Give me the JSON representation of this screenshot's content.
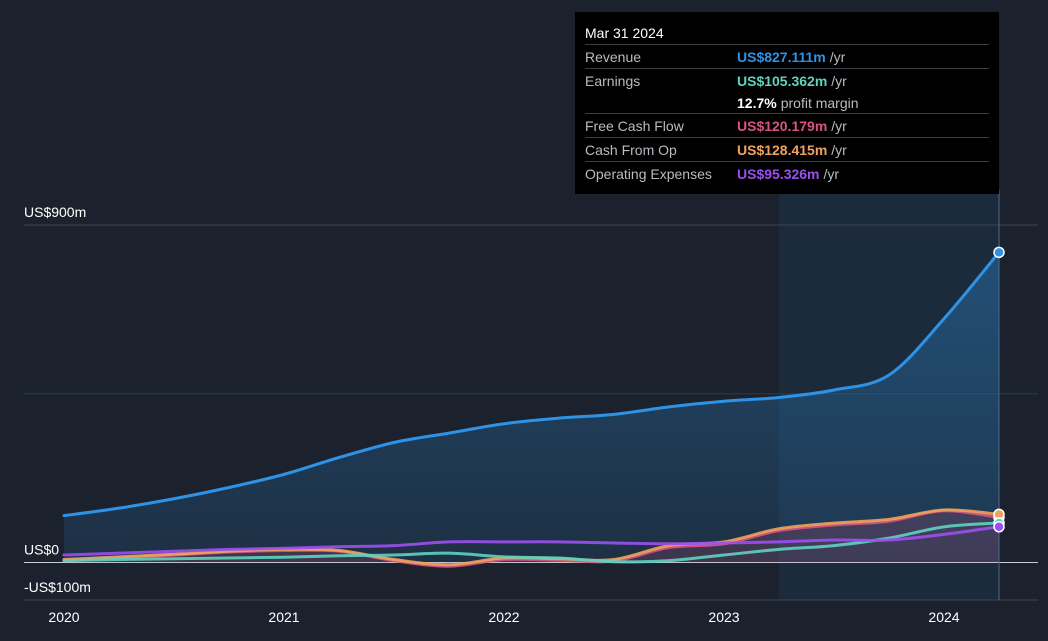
{
  "chart_data": {
    "type": "area",
    "y_tick_labels": [
      "US$900m",
      "US$0",
      "-US$100m"
    ],
    "ylim": [
      -100,
      900
    ],
    "x_ticks": [
      {
        "label": "2020",
        "x": 2020.0
      },
      {
        "label": "2021",
        "x": 2021.0
      },
      {
        "label": "2022",
        "x": 2022.0
      },
      {
        "label": "2023",
        "x": 2023.0
      },
      {
        "label": "2024",
        "x": 2024.0
      }
    ],
    "highlight_start": 2023.25,
    "series": [
      {
        "key": "revenue",
        "color": "#2e93e6",
        "fill": true,
        "points": [
          [
            2020.0,
            125
          ],
          [
            2020.25,
            145
          ],
          [
            2020.5,
            170
          ],
          [
            2020.75,
            200
          ],
          [
            2021.0,
            235
          ],
          [
            2021.25,
            280
          ],
          [
            2021.5,
            320
          ],
          [
            2021.75,
            345
          ],
          [
            2022.0,
            370
          ],
          [
            2022.25,
            385
          ],
          [
            2022.5,
            395
          ],
          [
            2022.75,
            415
          ],
          [
            2023.0,
            430
          ],
          [
            2023.25,
            440
          ],
          [
            2023.5,
            460
          ],
          [
            2023.75,
            500
          ],
          [
            2024.0,
            650
          ],
          [
            2024.25,
            827.111
          ]
        ]
      },
      {
        "key": "free_cash_flow",
        "color": "#d9547f",
        "fill": true,
        "points": [
          [
            2020.0,
            5
          ],
          [
            2020.25,
            12
          ],
          [
            2020.5,
            20
          ],
          [
            2020.75,
            28
          ],
          [
            2021.0,
            32
          ],
          [
            2021.25,
            30
          ],
          [
            2021.5,
            5
          ],
          [
            2021.75,
            -10
          ],
          [
            2022.0,
            8
          ],
          [
            2022.25,
            6
          ],
          [
            2022.5,
            4
          ],
          [
            2022.75,
            40
          ],
          [
            2023.0,
            50
          ],
          [
            2023.25,
            85
          ],
          [
            2023.5,
            100
          ],
          [
            2023.75,
            110
          ],
          [
            2024.0,
            138
          ],
          [
            2024.25,
            120.179
          ]
        ]
      },
      {
        "key": "cash_from_op",
        "color": "#f0a35e",
        "fill": false,
        "points": [
          [
            2020.0,
            8
          ],
          [
            2020.25,
            15
          ],
          [
            2020.5,
            22
          ],
          [
            2020.75,
            30
          ],
          [
            2021.0,
            35
          ],
          [
            2021.25,
            32
          ],
          [
            2021.5,
            8
          ],
          [
            2021.75,
            -6
          ],
          [
            2022.0,
            12
          ],
          [
            2022.25,
            10
          ],
          [
            2022.5,
            8
          ],
          [
            2022.75,
            45
          ],
          [
            2023.0,
            55
          ],
          [
            2023.25,
            90
          ],
          [
            2023.5,
            105
          ],
          [
            2023.75,
            115
          ],
          [
            2024.0,
            140
          ],
          [
            2024.25,
            128.415
          ]
        ]
      },
      {
        "key": "earnings",
        "color": "#5fd2c0",
        "fill": false,
        "points": [
          [
            2020.0,
            5
          ],
          [
            2020.25,
            8
          ],
          [
            2020.5,
            10
          ],
          [
            2020.75,
            12
          ],
          [
            2021.0,
            14
          ],
          [
            2021.25,
            18
          ],
          [
            2021.5,
            20
          ],
          [
            2021.75,
            25
          ],
          [
            2022.0,
            15
          ],
          [
            2022.25,
            12
          ],
          [
            2022.5,
            2
          ],
          [
            2022.75,
            5
          ],
          [
            2023.0,
            20
          ],
          [
            2023.25,
            35
          ],
          [
            2023.5,
            45
          ],
          [
            2023.75,
            65
          ],
          [
            2024.0,
            95
          ],
          [
            2024.25,
            105.362
          ]
        ]
      },
      {
        "key": "operating_expenses",
        "color": "#9c4ff0",
        "fill": false,
        "points": [
          [
            2020.0,
            20
          ],
          [
            2020.25,
            25
          ],
          [
            2020.5,
            30
          ],
          [
            2020.75,
            35
          ],
          [
            2021.0,
            38
          ],
          [
            2021.25,
            42
          ],
          [
            2021.5,
            45
          ],
          [
            2021.75,
            55
          ],
          [
            2022.0,
            55
          ],
          [
            2022.25,
            55
          ],
          [
            2022.5,
            52
          ],
          [
            2022.75,
            50
          ],
          [
            2023.0,
            52
          ],
          [
            2023.25,
            55
          ],
          [
            2023.5,
            60
          ],
          [
            2023.75,
            60
          ],
          [
            2024.0,
            75
          ],
          [
            2024.25,
            95.326
          ]
        ]
      }
    ]
  },
  "tooltip": {
    "date": "Mar 31 2024",
    "rows": [
      {
        "label": "Revenue",
        "value": "US$827.111m",
        "unit": "/yr",
        "color": "#2e93e6"
      },
      {
        "label": "Earnings",
        "value": "US$105.362m",
        "unit": "/yr",
        "color": "#5fd2c0"
      },
      {
        "label": "",
        "value": "12.7%",
        "unit": "profit margin",
        "color": "#ffffff"
      },
      {
        "label": "Free Cash Flow",
        "value": "US$120.179m",
        "unit": "/yr",
        "color": "#d9547f"
      },
      {
        "label": "Cash From Op",
        "value": "US$128.415m",
        "unit": "/yr",
        "color": "#f0a35e"
      },
      {
        "label": "Operating Expenses",
        "value": "US$95.326m",
        "unit": "/yr",
        "color": "#9c4ff0"
      }
    ]
  }
}
